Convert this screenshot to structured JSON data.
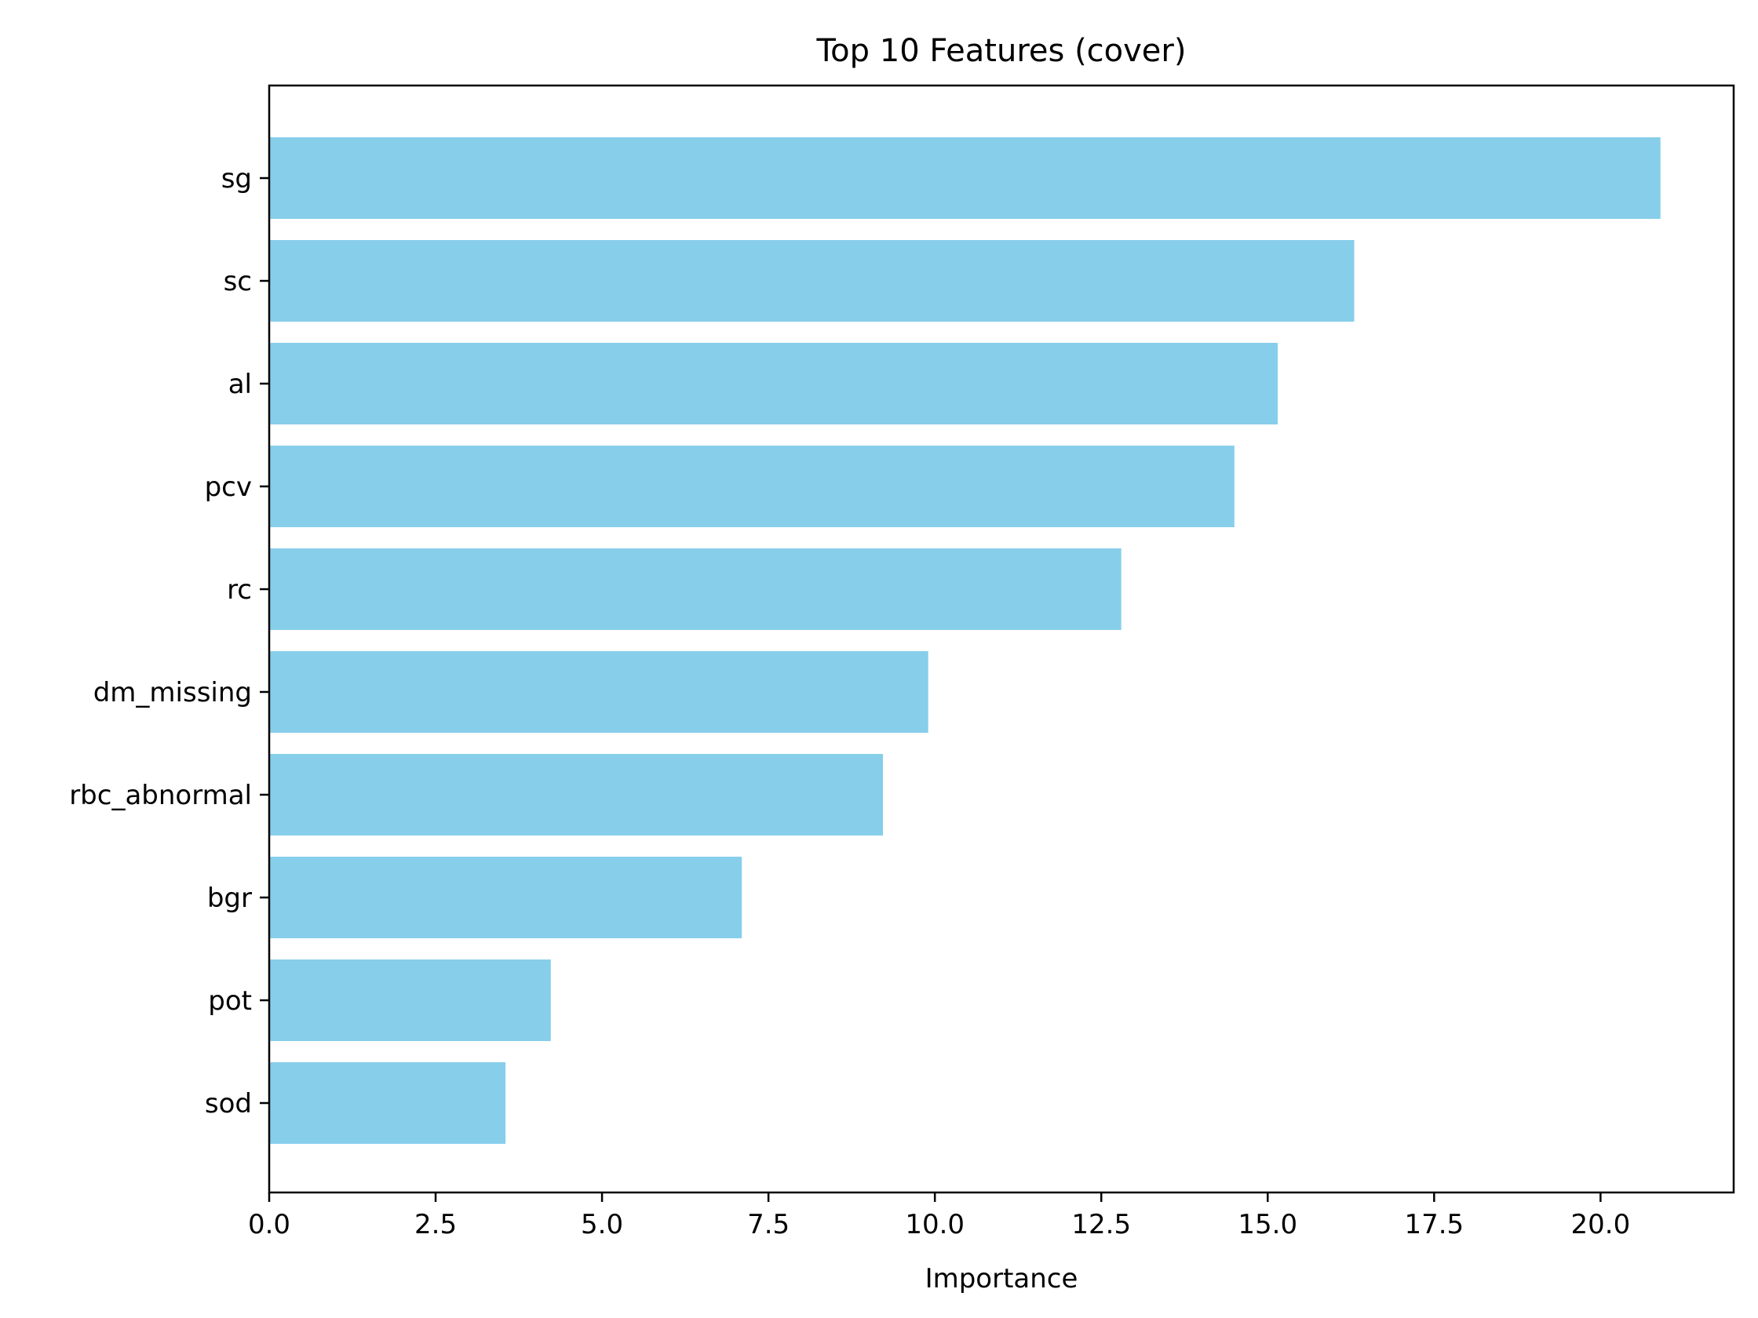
{
  "chart_data": {
    "type": "bar",
    "orientation": "horizontal",
    "title": "Top 10 Features (cover)",
    "xlabel": "Importance",
    "ylabel": "",
    "categories": [
      "sg",
      "sc",
      "al",
      "pcv",
      "rc",
      "dm_missing",
      "rbc_abnormal",
      "bgr",
      "pot",
      "sod"
    ],
    "values": [
      20.9,
      16.3,
      15.15,
      14.5,
      12.8,
      9.9,
      9.22,
      7.1,
      4.23,
      3.55
    ],
    "xlim": [
      0,
      22
    ],
    "xticks": [
      0,
      2.5,
      5,
      7.5,
      10,
      12.5,
      15,
      17.5,
      20
    ],
    "xtick_labels": [
      "0.0",
      "2.5",
      "5.0",
      "7.5",
      "10.0",
      "12.5",
      "15.0",
      "17.5",
      "20.0"
    ],
    "grid": false,
    "bar_color": "#87ceeb"
  }
}
